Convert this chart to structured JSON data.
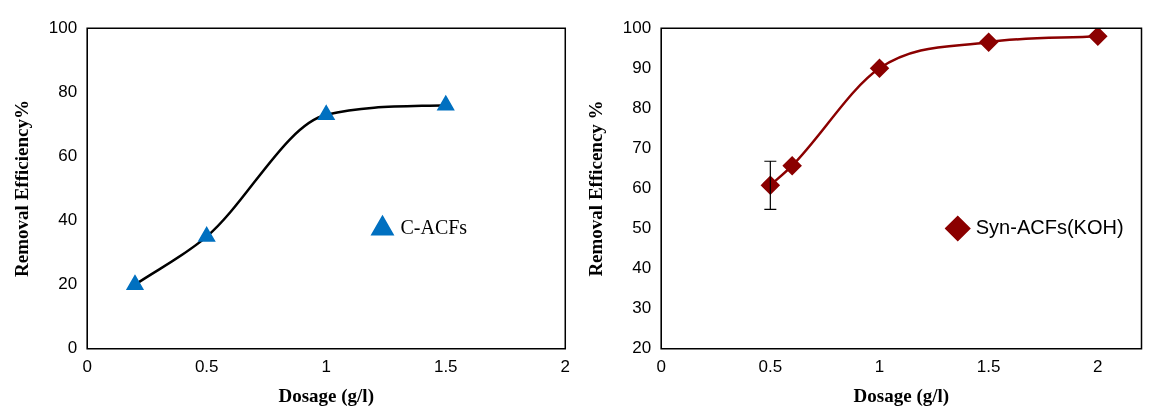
{
  "chart_data": [
    {
      "type": "line",
      "xlabel": "Dosage (g/l)",
      "ylabel": "Removal Efficiency%",
      "xlim": [
        0,
        2
      ],
      "xticks": [
        0,
        0.5,
        1,
        1.5,
        2
      ],
      "ylim": [
        0,
        100
      ],
      "yticks": [
        0,
        20,
        40,
        60,
        80,
        100
      ],
      "grid": false,
      "legend": "right",
      "marker": "triangle",
      "series": [
        {
          "name": "C-ACFs",
          "color": "#000000",
          "colors": [
            "#0070c0",
            "#0070c0",
            "#0070c0",
            "#0070c0"
          ],
          "x": [
            0.2,
            0.5,
            1,
            1.5
          ],
          "values": [
            20,
            35,
            73,
            76
          ]
        }
      ]
    },
    {
      "type": "line",
      "xlabel": "Dosage (g/l)",
      "ylabel": "Removal Efficency %",
      "xlim": [
        0,
        2.2
      ],
      "xticks": [
        0,
        0.5,
        1,
        1.5,
        2
      ],
      "ylim": [
        20,
        100
      ],
      "yticks": [
        20,
        30,
        40,
        50,
        60,
        70,
        80,
        90,
        100
      ],
      "grid": false,
      "legend": "right",
      "marker": "diamond",
      "series": [
        {
          "name": "Syn-ACFs(KOH)",
          "color": "#8b0000",
          "x": [
            0.5,
            0.6,
            1,
            1.5,
            2
          ],
          "values": [
            60.8,
            65.7,
            90,
            96.5,
            98
          ],
          "errors": [
            6,
            null,
            null,
            null,
            null
          ]
        }
      ]
    }
  ]
}
